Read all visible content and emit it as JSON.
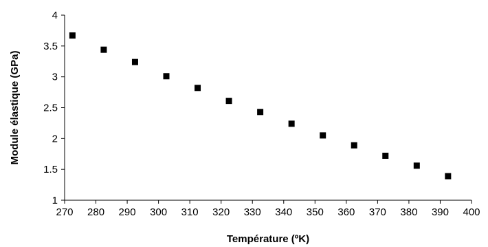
{
  "chart_data": {
    "type": "scatter",
    "title": "",
    "xlabel": "Température (ºK)",
    "ylabel": "Module élastique (GPa)",
    "xlim": [
      270,
      400
    ],
    "ylim": [
      1,
      4
    ],
    "xticks": [
      270,
      280,
      290,
      300,
      310,
      320,
      330,
      340,
      350,
      360,
      370,
      380,
      390,
      400
    ],
    "yticks": [
      1,
      1.5,
      2,
      2.5,
      3,
      3.5,
      4
    ],
    "ytick_labels": [
      "1",
      "1.5",
      "2",
      "2.5",
      "3",
      "3.5",
      "4"
    ],
    "grid": false,
    "marker": "square",
    "marker_color": "#000000",
    "series": [
      {
        "x": [
          272.5,
          282.5,
          292.5,
          302.5,
          312.5,
          322.5,
          332.5,
          342.5,
          352.5,
          362.5,
          372.5,
          382.5,
          392.5
        ],
        "y": [
          3.67,
          3.44,
          3.24,
          3.01,
          2.82,
          2.61,
          2.43,
          2.24,
          2.05,
          1.89,
          1.72,
          1.56,
          1.39
        ]
      }
    ]
  }
}
